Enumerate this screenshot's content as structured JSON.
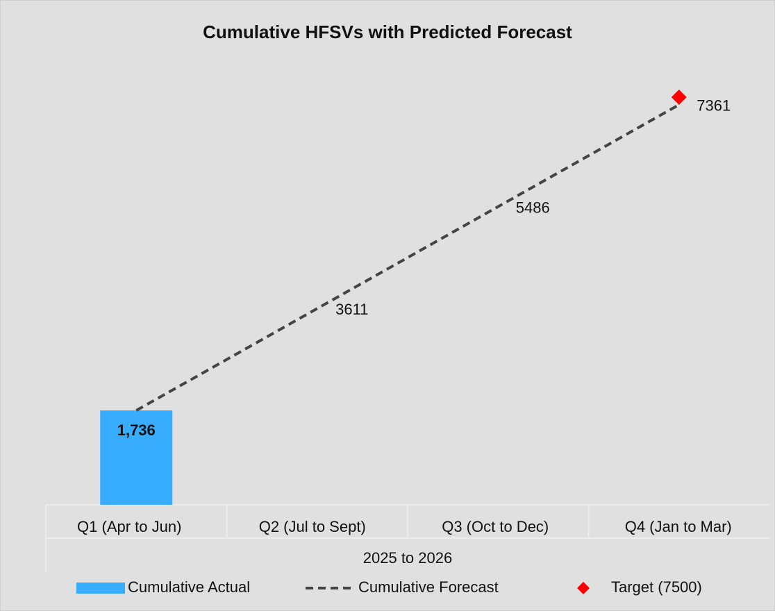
{
  "chart_data": {
    "type": "bar_line",
    "title": "Cumulative HFSVs with Predicted Forecast",
    "xlabel": "2025 to 2026",
    "categories": [
      "Q1 (Apr to Jun)",
      "Q2 (Jul to Sept)",
      "Q3 (Oct to Dec)",
      "Q4 (Jan to Mar)"
    ],
    "ylim": [
      0,
      7500
    ],
    "series": [
      {
        "name": "Cumulative Actual",
        "type": "bar",
        "color": "#38adff",
        "values": [
          1736,
          null,
          null,
          null
        ],
        "value_labels": [
          "1,736",
          null,
          null,
          null
        ]
      },
      {
        "name": "Cumulative Forecast",
        "type": "line",
        "color": "#444444",
        "values": [
          1736,
          3611,
          5486,
          7361
        ],
        "value_labels": [
          null,
          "3611",
          "5486",
          "7361"
        ]
      },
      {
        "name": "Target (7500)",
        "type": "scatter",
        "color": "#ff0000",
        "values": [
          null,
          null,
          null,
          7500
        ]
      }
    ],
    "legend": "bottom"
  }
}
